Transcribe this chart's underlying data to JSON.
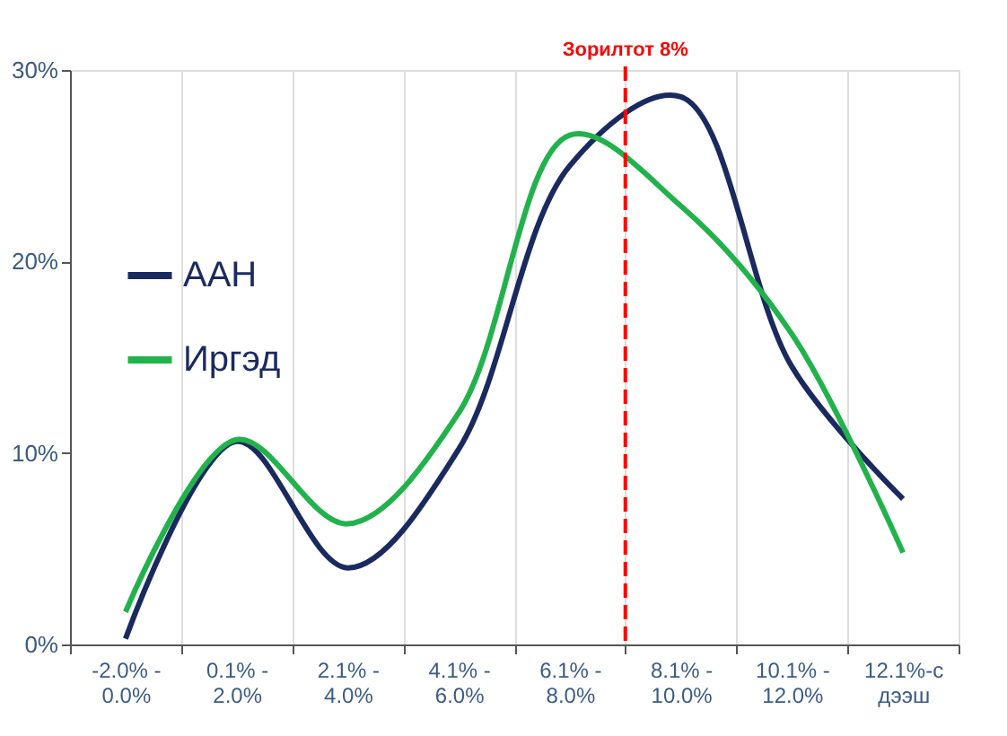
{
  "chart_data": {
    "type": "line",
    "categories": [
      "-2.0% - 0.0%",
      "0.1% - 2.0%",
      "2.1% - 4.0%",
      "4.1% - 6.0%",
      "6.1% - 8.0%",
      "8.1% - 10.0%",
      "10.1% - 12.0%",
      "12.1%-с дээш"
    ],
    "series": [
      {
        "name": "ААН",
        "color": "#1b2a5e",
        "values": [
          0.3,
          10.6,
          4.0,
          10.2,
          25.0,
          28.6,
          14.5,
          7.6
        ]
      },
      {
        "name": "Иргэд",
        "color": "#22b24c",
        "values": [
          1.7,
          10.7,
          6.3,
          12.1,
          26.6,
          22.9,
          16.2,
          4.8
        ]
      }
    ],
    "ylim": [
      0,
      30
    ],
    "yticks": [
      {
        "value": 0,
        "label": "0%"
      },
      {
        "value": 10,
        "label": "10%"
      },
      {
        "value": 20,
        "label": "20%"
      },
      {
        "value": 30,
        "label": "30%"
      }
    ],
    "ref_lines": [
      {
        "axis": "x",
        "value": "8.1% - 10.0%",
        "label": "Зорилтот 8%",
        "color": "#ff0000",
        "line_style": "dashed"
      }
    ],
    "grid": "x",
    "legend": "left",
    "marker": "none",
    "line_style": "solid"
  }
}
